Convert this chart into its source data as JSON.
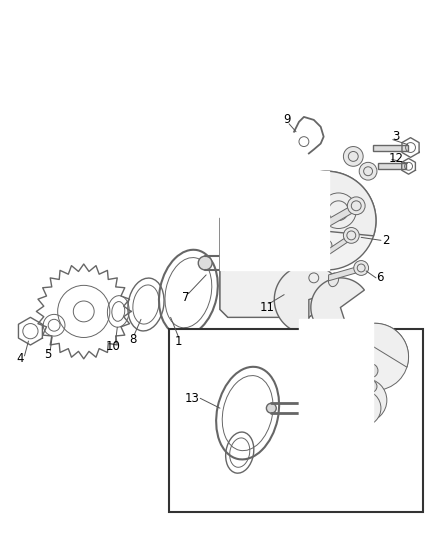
{
  "bg_color": "#ffffff",
  "line_color": "#666666",
  "fig_width": 4.38,
  "fig_height": 5.33,
  "dpi": 100
}
